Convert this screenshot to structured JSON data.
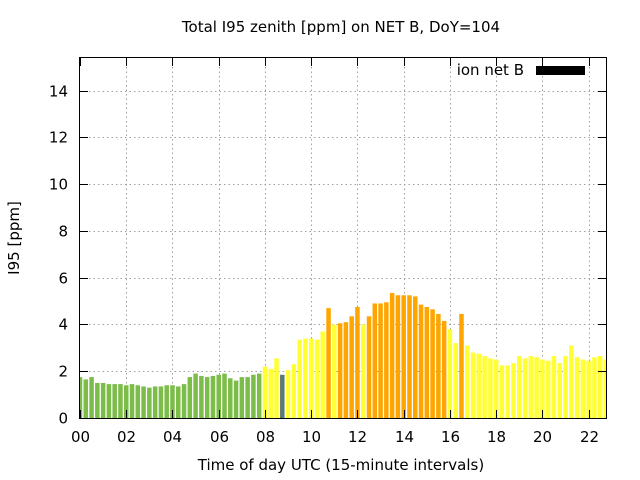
{
  "chart_data": {
    "type": "bar",
    "title": "Total I95 zenith [ppm] on NET B, DoY=104",
    "xlabel": "Time of day UTC (15-minute intervals)",
    "ylabel": "I95 [ppm]",
    "xlim": [
      0,
      22.75
    ],
    "ylim": [
      0,
      15.4
    ],
    "x_ticks": [
      0,
      2,
      4,
      6,
      8,
      10,
      12,
      14,
      16,
      18,
      20,
      22
    ],
    "x_tick_labels": [
      "00",
      "02",
      "04",
      "06",
      "08",
      "10",
      "12",
      "14",
      "16",
      "18",
      "20",
      "22"
    ],
    "y_ticks": [
      0,
      2,
      4,
      6,
      8,
      10,
      12,
      14
    ],
    "y_tick_labels": [
      "0",
      "2",
      "4",
      "6",
      "8",
      "10",
      "12",
      "14"
    ],
    "grid": true,
    "legend": {
      "position": "top-right",
      "label": "ion net B",
      "color": "#000000"
    },
    "colors": {
      "green": "#7cbd4a",
      "yellow": "#ffff33",
      "orange": "#ffa500",
      "gray": "#5a7a7a"
    },
    "series": [
      {
        "x": [
          0.0,
          0.25,
          0.5,
          0.75,
          1.0,
          1.25,
          1.5,
          1.75,
          2.0,
          2.25,
          2.5,
          2.75,
          3.0,
          3.25,
          3.5,
          3.75,
          4.0,
          4.25,
          4.5,
          4.75,
          5.0,
          5.25,
          5.5,
          5.75,
          6.0,
          6.25,
          6.5,
          6.75,
          7.0,
          7.25,
          7.5,
          7.75,
          8.0,
          8.25,
          8.5,
          8.75,
          9.0,
          9.25,
          9.5,
          9.75,
          10.0,
          10.25,
          10.5,
          10.75,
          11.0,
          11.25,
          11.5,
          11.75,
          12.0,
          12.25,
          12.5,
          12.75,
          13.0,
          13.25,
          13.5,
          13.75,
          14.0,
          14.25,
          14.5,
          14.75,
          15.0,
          15.25,
          15.5,
          15.75,
          16.0,
          16.25,
          16.5,
          16.75,
          17.0,
          17.25,
          17.5,
          17.75,
          18.0,
          18.25,
          18.5,
          18.75,
          19.0,
          19.25,
          19.5,
          19.75,
          20.0,
          20.25,
          20.5,
          20.75,
          21.0,
          21.25,
          21.5,
          21.75,
          22.0,
          22.25,
          22.5,
          22.75
        ],
        "values": [
          1.75,
          1.65,
          1.75,
          1.5,
          1.5,
          1.45,
          1.45,
          1.45,
          1.4,
          1.45,
          1.4,
          1.35,
          1.3,
          1.35,
          1.35,
          1.4,
          1.4,
          1.35,
          1.45,
          1.75,
          1.9,
          1.8,
          1.75,
          1.8,
          1.85,
          1.9,
          1.7,
          1.6,
          1.75,
          1.75,
          1.85,
          1.9,
          2.2,
          2.1,
          2.55,
          1.85,
          2.05,
          2.3,
          3.35,
          3.4,
          3.4,
          3.35,
          3.7,
          4.7,
          4.0,
          4.05,
          4.1,
          4.35,
          4.75,
          4.0,
          4.35,
          4.9,
          4.9,
          4.95,
          5.35,
          5.25,
          5.25,
          5.25,
          5.2,
          4.85,
          4.75,
          4.65,
          4.45,
          4.15,
          3.8,
          3.2,
          4.45,
          3.1,
          2.8,
          2.75,
          2.65,
          2.55,
          2.5,
          2.25,
          2.25,
          2.35,
          2.65,
          2.55,
          2.65,
          2.6,
          2.5,
          2.45,
          2.65,
          2.35,
          2.65,
          3.1,
          2.6,
          2.5,
          2.45,
          2.6,
          2.65,
          2.5
        ],
        "colors": [
          "green",
          "green",
          "green",
          "green",
          "green",
          "green",
          "green",
          "green",
          "green",
          "green",
          "green",
          "green",
          "green",
          "green",
          "green",
          "green",
          "green",
          "green",
          "green",
          "green",
          "green",
          "green",
          "green",
          "green",
          "green",
          "green",
          "green",
          "green",
          "green",
          "green",
          "green",
          "green",
          "yellow",
          "yellow",
          "yellow",
          "gray",
          "yellow",
          "yellow",
          "yellow",
          "yellow",
          "yellow",
          "yellow",
          "yellow",
          "orange",
          "yellow",
          "orange",
          "orange",
          "orange",
          "orange",
          "yellow",
          "orange",
          "orange",
          "orange",
          "orange",
          "orange",
          "orange",
          "orange",
          "orange",
          "orange",
          "orange",
          "orange",
          "orange",
          "orange",
          "orange",
          "yellow",
          "yellow",
          "orange",
          "yellow",
          "yellow",
          "yellow",
          "yellow",
          "yellow",
          "yellow",
          "yellow",
          "yellow",
          "yellow",
          "yellow",
          "yellow",
          "yellow",
          "yellow",
          "yellow",
          "yellow",
          "yellow",
          "yellow",
          "yellow",
          "yellow",
          "yellow",
          "yellow",
          "yellow",
          "yellow",
          "yellow",
          "yellow"
        ]
      }
    ]
  }
}
